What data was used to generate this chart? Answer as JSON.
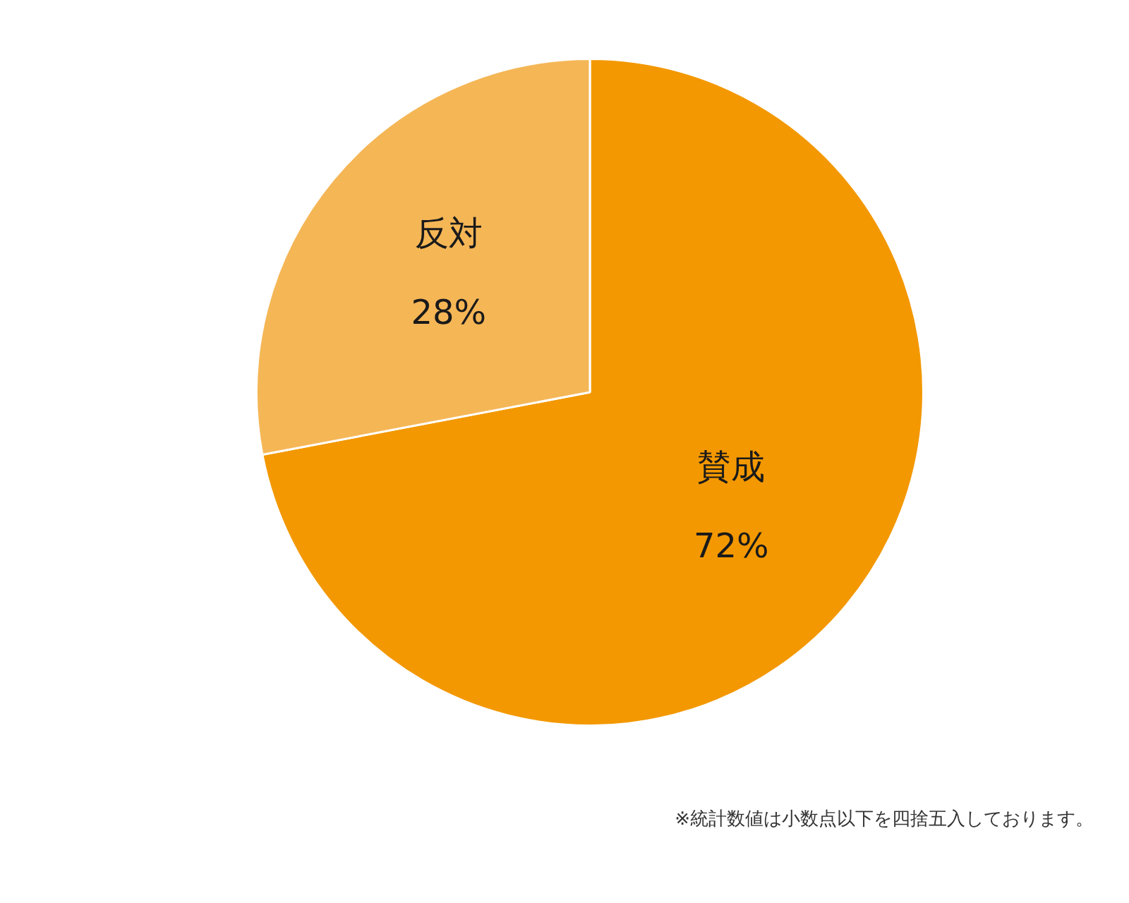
{
  "chart_data": {
    "type": "pie",
    "categories": [
      "賛成",
      "反対"
    ],
    "values": [
      72,
      28
    ],
    "colors": [
      "#f39800",
      "#f5b656"
    ],
    "value_labels": [
      "72%",
      "28%"
    ],
    "legend": false,
    "annotations": [
      "※統計数値は小数点以下を四捨五入しております。"
    ]
  }
}
